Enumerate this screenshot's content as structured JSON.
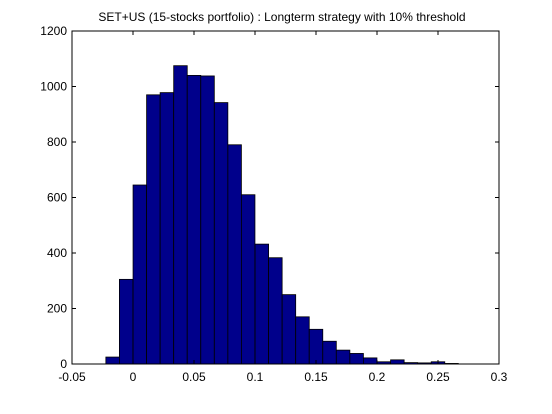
{
  "chart_data": {
    "type": "bar",
    "title": "SET+US (15-stocks portfolio) : Longterm strategy with 10% threshold",
    "xlabel": "",
    "ylabel": "",
    "xlim": [
      -0.05,
      0.3
    ],
    "ylim": [
      0,
      1200
    ],
    "xticks": [
      -0.05,
      0,
      0.05,
      0.1,
      0.15,
      0.2,
      0.25,
      0.3
    ],
    "xtick_labels": [
      "-0.05",
      "0",
      "0.05",
      "0.1",
      "0.15",
      "0.2",
      "0.25",
      "0.3"
    ],
    "yticks": [
      0,
      200,
      400,
      600,
      800,
      1000,
      1200
    ],
    "ytick_labels": [
      "0",
      "200",
      "400",
      "600",
      "800",
      "1000",
      "1200"
    ],
    "grid": false,
    "bin_width": 0.0111,
    "bin_centers": [
      -0.0167,
      -0.0056,
      0.0056,
      0.0167,
      0.0278,
      0.0389,
      0.05,
      0.0611,
      0.0722,
      0.0833,
      0.0944,
      0.1056,
      0.1167,
      0.1278,
      0.1389,
      0.15,
      0.1611,
      0.1722,
      0.1833,
      0.1944,
      0.2056,
      0.2167,
      0.2278,
      0.2389,
      0.25,
      0.2611
    ],
    "values": [
      25,
      305,
      645,
      970,
      978,
      1075,
      1040,
      1038,
      942,
      790,
      610,
      432,
      383,
      250,
      170,
      125,
      82,
      50,
      38,
      22,
      8,
      15,
      5,
      4,
      8,
      2
    ],
    "colors": {
      "bar_fill": "#00008b",
      "bar_edge": "#000000",
      "axes": "#000000",
      "background": "#ffffff"
    }
  }
}
